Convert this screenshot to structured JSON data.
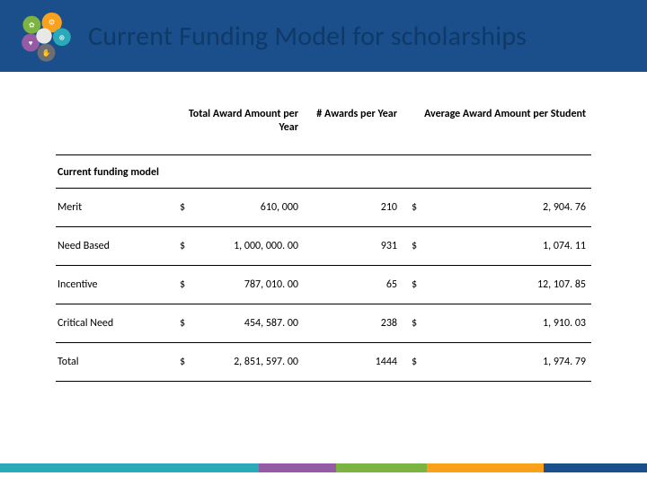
{
  "header": {
    "bg_color": "#1a4f8c",
    "title": "Current Funding Model for scholarships",
    "title_color": "#0f3a68",
    "logo_colors": {
      "orange": "#f9a11b",
      "teal": "#2aa9b8",
      "green": "#7cb342",
      "purple": "#955ba5",
      "grey": "#6d6e71",
      "center": "#e8e8e8"
    }
  },
  "table": {
    "columns": [
      "Total Award Amount per Year",
      "# Awards per Year",
      "Average Award Amount per Student"
    ],
    "section_label": "Current funding model",
    "rows": [
      {
        "label": "Merit",
        "total": "610, 000",
        "awards": "210",
        "avg": "2, 904. 76"
      },
      {
        "label": "Need Based",
        "total": "1, 000, 000. 00",
        "awards": "931",
        "avg": "1, 074. 11"
      },
      {
        "label": "Incentive",
        "total": "787, 010. 00",
        "awards": "65",
        "avg": "12, 107. 85"
      },
      {
        "label": "Critical Need",
        "total": "454, 587. 00",
        "awards": "238",
        "avg": "1, 910. 03"
      },
      {
        "label": "Total",
        "total": "2, 851, 597. 00",
        "awards": "1444",
        "avg": "1, 974. 79"
      }
    ],
    "currency_symbol": "$"
  },
  "footer": {
    "segments": [
      {
        "color": "#2aa9b8",
        "width_pct": 40
      },
      {
        "color": "#955ba5",
        "width_pct": 12
      },
      {
        "color": "#7cb342",
        "width_pct": 14
      },
      {
        "color": "#f9a11b",
        "width_pct": 18
      },
      {
        "color": "#1a4f8c",
        "width_pct": 16
      }
    ]
  }
}
